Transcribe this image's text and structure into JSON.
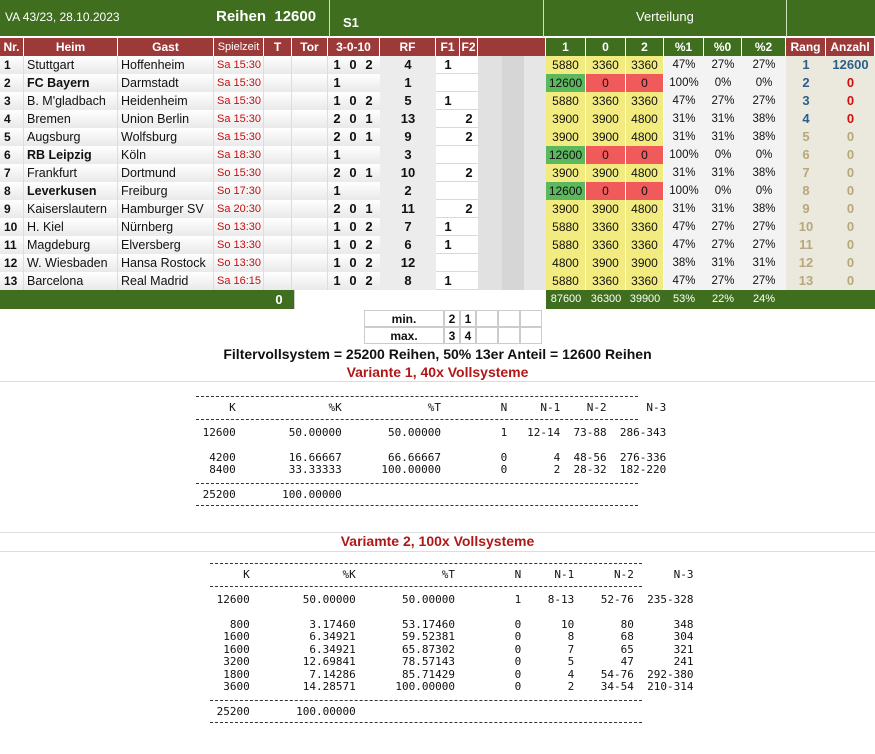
{
  "top": {
    "info": "VA 43/23, 28.10.2023",
    "reihen_label": "Reihen",
    "reihen_value": "12600",
    "system": "S1",
    "verteilung": "Verteilung"
  },
  "columns": [
    "Nr.",
    "Heim",
    "Gast",
    "Spielzeit",
    "T",
    "Tor",
    "3-0-10",
    "RF",
    "F1",
    "F2",
    "1",
    "0",
    "2",
    "%1",
    "%0",
    "%2",
    "Rang",
    "Anzahl"
  ],
  "colors": {
    "green": "#5cb85c",
    "red": "#f05a5a",
    "yellow": "#f2ec80",
    "header_green": "#3f6e1e",
    "header_red": "#9c3a3a"
  },
  "rows": [
    {
      "nr": "1",
      "heim": "Stuttgart",
      "heim_bold": false,
      "gast": "Hoffenheim",
      "zeit": "Sa 15:30",
      "n1": "1",
      "n0": "0",
      "n2": "2",
      "rf": "4",
      "f1": "1",
      "f2": "",
      "v1": "5880",
      "v0": "3360",
      "v2": "3360",
      "c1": "y",
      "c0": "y",
      "c2": "y",
      "p1": "47%",
      "p0": "27%",
      "p2": "27%",
      "rang": "1",
      "rang_color": "#2b5f8a",
      "anzahl": "12600",
      "anz_color": "#2b5f8a"
    },
    {
      "nr": "2",
      "heim": "FC Bayern",
      "heim_bold": true,
      "gast": "Darmstadt",
      "zeit": "Sa 15:30",
      "n1": "1",
      "n0": "",
      "n2": "",
      "rf": "1",
      "f1": "",
      "f2": "",
      "v1": "12600",
      "v0": "0",
      "v2": "0",
      "c1": "g",
      "c0": "r",
      "c2": "r",
      "p1": "100%",
      "p0": "0%",
      "p2": "0%",
      "rang": "2",
      "rang_color": "#2b5f8a",
      "anzahl": "0",
      "anz_color": "#d01010"
    },
    {
      "nr": "3",
      "heim": "B. M'gladbach",
      "heim_bold": false,
      "gast": "Heidenheim",
      "zeit": "Sa 15:30",
      "n1": "1",
      "n0": "0",
      "n2": "2",
      "rf": "5",
      "f1": "1",
      "f2": "",
      "v1": "5880",
      "v0": "3360",
      "v2": "3360",
      "c1": "y",
      "c0": "y",
      "c2": "y",
      "p1": "47%",
      "p0": "27%",
      "p2": "27%",
      "rang": "3",
      "rang_color": "#2b5f8a",
      "anzahl": "0",
      "anz_color": "#d01010"
    },
    {
      "nr": "4",
      "heim": "Bremen",
      "heim_bold": false,
      "gast": "Union Berlin",
      "zeit": "Sa 15:30",
      "n1": "2",
      "n0": "0",
      "n2": "1",
      "rf": "13",
      "f1": "",
      "f2": "2",
      "v1": "3900",
      "v0": "3900",
      "v2": "4800",
      "c1": "y",
      "c0": "y",
      "c2": "y",
      "p1": "31%",
      "p0": "31%",
      "p2": "38%",
      "rang": "4",
      "rang_color": "#2b5f8a",
      "anzahl": "0",
      "anz_color": "#d01010"
    },
    {
      "nr": "5",
      "heim": "Augsburg",
      "heim_bold": false,
      "gast": "Wolfsburg",
      "zeit": "Sa 15:30",
      "n1": "2",
      "n0": "0",
      "n2": "1",
      "rf": "9",
      "f1": "",
      "f2": "2",
      "v1": "3900",
      "v0": "3900",
      "v2": "4800",
      "c1": "y",
      "c0": "y",
      "c2": "y",
      "p1": "31%",
      "p0": "31%",
      "p2": "38%",
      "rang": "5",
      "rang_color": "#b8a77a",
      "anzahl": "0",
      "anz_color": "#b8a77a"
    },
    {
      "nr": "6",
      "heim": "RB Leipzig",
      "heim_bold": true,
      "gast": "Köln",
      "zeit": "Sa 18:30",
      "n1": "1",
      "n0": "",
      "n2": "",
      "rf": "3",
      "f1": "",
      "f2": "",
      "v1": "12600",
      "v0": "0",
      "v2": "0",
      "c1": "g",
      "c0": "r",
      "c2": "r",
      "p1": "100%",
      "p0": "0%",
      "p2": "0%",
      "rang": "6",
      "rang_color": "#b8a77a",
      "anzahl": "0",
      "anz_color": "#b8a77a"
    },
    {
      "nr": "7",
      "heim": "Frankfurt",
      "heim_bold": false,
      "gast": "Dortmund",
      "zeit": "So 15:30",
      "n1": "2",
      "n0": "0",
      "n2": "1",
      "rf": "10",
      "f1": "",
      "f2": "2",
      "v1": "3900",
      "v0": "3900",
      "v2": "4800",
      "c1": "y",
      "c0": "y",
      "c2": "y",
      "p1": "31%",
      "p0": "31%",
      "p2": "38%",
      "rang": "7",
      "rang_color": "#b8a77a",
      "anzahl": "0",
      "anz_color": "#b8a77a"
    },
    {
      "nr": "8",
      "heim": "Leverkusen",
      "heim_bold": true,
      "gast": "Freiburg",
      "zeit": "So 17:30",
      "n1": "1",
      "n0": "",
      "n2": "",
      "rf": "2",
      "f1": "",
      "f2": "",
      "v1": "12600",
      "v0": "0",
      "v2": "0",
      "c1": "g",
      "c0": "r",
      "c2": "r",
      "p1": "100%",
      "p0": "0%",
      "p2": "0%",
      "rang": "8",
      "rang_color": "#b8a77a",
      "anzahl": "0",
      "anz_color": "#b8a77a"
    },
    {
      "nr": "9",
      "heim": "Kaiserslautern",
      "heim_bold": false,
      "gast": "Hamburger SV",
      "zeit": "Sa 20:30",
      "n1": "2",
      "n0": "0",
      "n2": "1",
      "rf": "11",
      "f1": "",
      "f2": "2",
      "v1": "3900",
      "v0": "3900",
      "v2": "4800",
      "c1": "y",
      "c0": "y",
      "c2": "y",
      "p1": "31%",
      "p0": "31%",
      "p2": "38%",
      "rang": "9",
      "rang_color": "#b8a77a",
      "anzahl": "0",
      "anz_color": "#b8a77a"
    },
    {
      "nr": "10",
      "heim": "H. Kiel",
      "heim_bold": false,
      "gast": "Nürnberg",
      "zeit": "So 13:30",
      "n1": "1",
      "n0": "0",
      "n2": "2",
      "rf": "7",
      "f1": "1",
      "f2": "",
      "v1": "5880",
      "v0": "3360",
      "v2": "3360",
      "c1": "y",
      "c0": "y",
      "c2": "y",
      "p1": "47%",
      "p0": "27%",
      "p2": "27%",
      "rang": "10",
      "rang_color": "#b8a77a",
      "anzahl": "0",
      "anz_color": "#b8a77a"
    },
    {
      "nr": "11",
      "heim": "Magdeburg",
      "heim_bold": false,
      "gast": "Elversberg",
      "zeit": "So 13:30",
      "n1": "1",
      "n0": "0",
      "n2": "2",
      "rf": "6",
      "f1": "1",
      "f2": "",
      "v1": "5880",
      "v0": "3360",
      "v2": "3360",
      "c1": "y",
      "c0": "y",
      "c2": "y",
      "p1": "47%",
      "p0": "27%",
      "p2": "27%",
      "rang": "11",
      "rang_color": "#b8a77a",
      "anzahl": "0",
      "anz_color": "#b8a77a"
    },
    {
      "nr": "12",
      "heim": "W. Wiesbaden",
      "heim_bold": false,
      "gast": "Hansa Rostock",
      "zeit": "So 13:30",
      "n1": "1",
      "n0": "0",
      "n2": "2",
      "rf": "12",
      "f1": "",
      "f2": "",
      "v1": "4800",
      "v0": "3900",
      "v2": "3900",
      "c1": "y",
      "c0": "y",
      "c2": "y",
      "p1": "38%",
      "p0": "31%",
      "p2": "31%",
      "rang": "12",
      "rang_color": "#b8a77a",
      "anzahl": "0",
      "anz_color": "#b8a77a"
    },
    {
      "nr": "13",
      "heim": "Barcelona",
      "heim_bold": false,
      "gast": "Real Madrid",
      "zeit": "Sa 16:15",
      "n1": "1",
      "n0": "0",
      "n2": "2",
      "rf": "8",
      "f1": "1",
      "f2": "",
      "v1": "5880",
      "v0": "3360",
      "v2": "3360",
      "c1": "y",
      "c0": "y",
      "c2": "y",
      "p1": "47%",
      "p0": "27%",
      "p2": "27%",
      "rang": "13",
      "rang_color": "#b8a77a",
      "anzahl": "0",
      "anz_color": "#b8a77a"
    }
  ],
  "footer": {
    "tor_total": "0",
    "sum1": "87600",
    "sum0": "36300",
    "sum2": "39900",
    "pct1": "53%",
    "pct0": "22%",
    "pct2": "24%"
  },
  "minmax": {
    "min_label": "min.",
    "min_a": "2",
    "min_b": "1",
    "max_label": "max.",
    "max_a": "3",
    "max_b": "4"
  },
  "filter_title": "Filtervollsystem = 25200 Reihen, 50% 13er Anteil = 12600 Reihen",
  "variant1": {
    "title": "Variante 1, 40x Vollsysteme",
    "headers": [
      "K",
      "%K",
      "%T",
      "N",
      "N-1",
      "N-2",
      "N-3"
    ],
    "rows": [
      [
        "12600",
        "50.00000",
        "50.00000",
        "1",
        "12-14",
        "73-88",
        "286-343"
      ],
      [
        "4200",
        "16.66667",
        "66.66667",
        "0",
        "4",
        "48-56",
        "276-336"
      ],
      [
        "8400",
        "33.33333",
        "100.00000",
        "0",
        "2",
        "28-32",
        "182-220"
      ]
    ],
    "total_k": "25200",
    "total_pct": "100.00000"
  },
  "variant2": {
    "title": "Variamte 2, 100x Vollsysteme",
    "headers": [
      "K",
      "%K",
      "%T",
      "N",
      "N-1",
      "N-2",
      "N-3"
    ],
    "rows": [
      [
        "12600",
        "50.00000",
        "50.00000",
        "1",
        "8-13",
        "52-76",
        "235-328"
      ],
      [
        "800",
        "3.17460",
        "53.17460",
        "0",
        "10",
        "80",
        "348"
      ],
      [
        "1600",
        "6.34921",
        "59.52381",
        "0",
        "8",
        "68",
        "304"
      ],
      [
        "1600",
        "6.34921",
        "65.87302",
        "0",
        "7",
        "65",
        "321"
      ],
      [
        "3200",
        "12.69841",
        "78.57143",
        "0",
        "5",
        "47",
        "241"
      ],
      [
        "1800",
        "7.14286",
        "85.71429",
        "0",
        "4",
        "54-76",
        "292-380"
      ],
      [
        "3600",
        "14.28571",
        "100.00000",
        "0",
        "2",
        "34-54",
        "210-314"
      ]
    ],
    "total_k": "25200",
    "total_pct": "100.00000"
  }
}
